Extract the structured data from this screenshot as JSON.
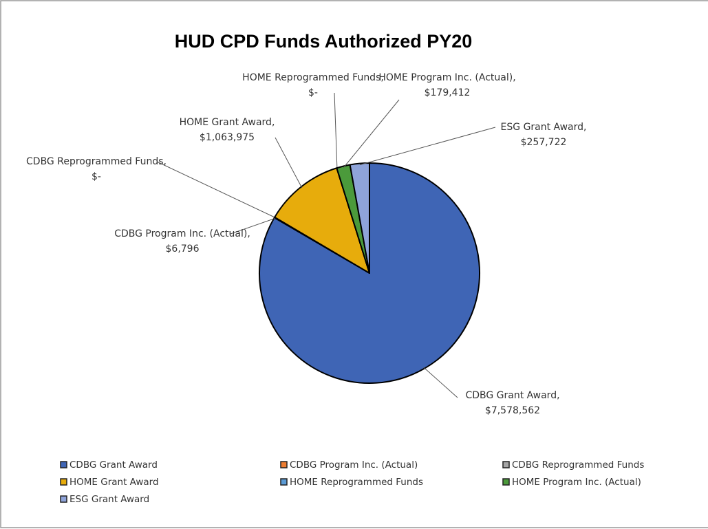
{
  "chart_data": {
    "type": "pie",
    "title": "HUD CPD Funds Authorized PY20",
    "categories": [
      "CDBG Grant Award",
      "CDBG Program Inc. (Actual)",
      "CDBG Reprogrammed Funds",
      "HOME Grant Award",
      "HOME Reprogrammed Funds",
      "HOME Program Inc. (Actual)",
      "ESG Grant Award"
    ],
    "values": [
      7578562,
      6796,
      0,
      1063975,
      0,
      179412,
      257722
    ],
    "value_labels": [
      "$7,578,562",
      "$6,796",
      "$-",
      "$1,063,975",
      "$-",
      "$179,412",
      "$257,722"
    ],
    "label_separator": ",",
    "colors": [
      "#3f65b5",
      "#ed7d31",
      "#a5a5a5",
      "#e7ac0c",
      "#5b9bd5",
      "#4b9a3b",
      "#8fa4da"
    ],
    "legend": "bottom"
  }
}
